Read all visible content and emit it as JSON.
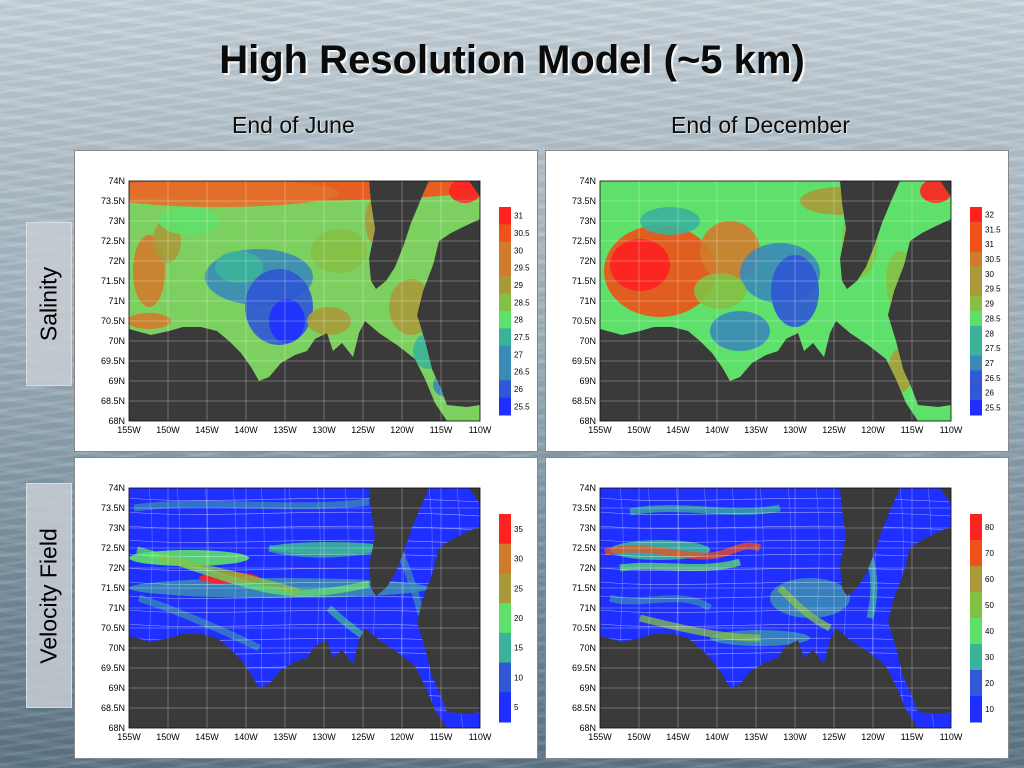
{
  "title": "High Resolution Model (~5 km)",
  "columns": [
    "End of June",
    "End of December"
  ],
  "rows": [
    "Salinity",
    "Velocity Field"
  ],
  "axes": {
    "lat_ticks": [
      "74N",
      "73.5N",
      "73N",
      "72.5N",
      "72N",
      "71.5N",
      "71N",
      "70.5N",
      "70N",
      "69.5N",
      "69N",
      "68.5N",
      "68N"
    ],
    "lon_ticks": [
      "155W",
      "150W",
      "145W",
      "140W",
      "135W",
      "130W",
      "125W",
      "120W",
      "115W",
      "110W"
    ]
  },
  "colorbars": {
    "salinity_june": [
      "31",
      "30.5",
      "30",
      "29.5",
      "29",
      "28.5",
      "28",
      "27.5",
      "27",
      "26.5",
      "26",
      "25.5"
    ],
    "salinity_dec": [
      "32",
      "31.5",
      "31",
      "30.5",
      "30",
      "29.5",
      "29",
      "28.5",
      "28",
      "27.5",
      "27",
      "26.5",
      "26",
      "25.5"
    ],
    "velocity_june": [
      "35",
      "30",
      "25",
      "20",
      "15",
      "10",
      "5"
    ],
    "velocity_dec": [
      "80",
      "70",
      "60",
      "50",
      "40",
      "30",
      "20",
      "10"
    ]
  },
  "colors": {
    "land": "#3a3a3a",
    "colorbar_ramp": [
      "#ff2020",
      "#f0501a",
      "#d07b2c",
      "#a89a3a",
      "#84c044",
      "#5fe06a",
      "#3ab39a",
      "#3a8ab8",
      "#2f57d6",
      "#1f2fff"
    ]
  }
}
